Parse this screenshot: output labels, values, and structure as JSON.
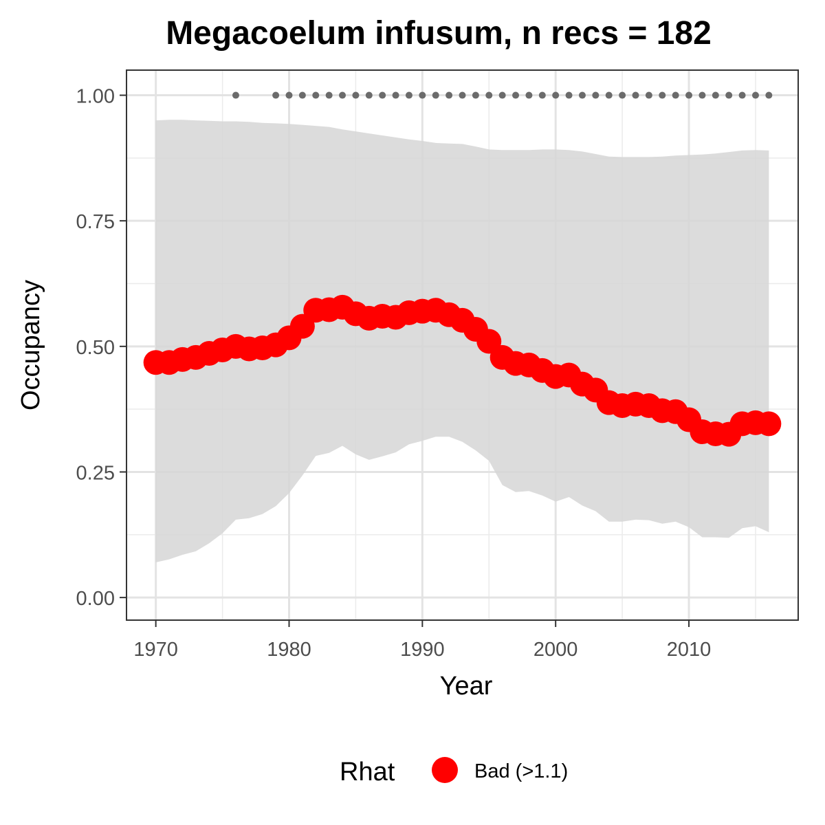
{
  "chart_data": {
    "type": "line",
    "title": "Megacoelum infusum, n recs = 182",
    "xlabel": "Year",
    "ylabel": "Occupancy",
    "xlim": [
      1967.8,
      2018.2
    ],
    "ylim": [
      -0.045,
      1.05
    ],
    "x_ticks": [
      1970,
      1980,
      1990,
      2000,
      2010
    ],
    "x_tick_labels": [
      "1970",
      "1980",
      "1990",
      "2000",
      "2010"
    ],
    "x_minor_ticks": [
      1975,
      1985,
      1995,
      2005,
      2015
    ],
    "y_ticks": [
      0,
      0.25,
      0.5,
      0.75,
      1
    ],
    "y_tick_labels": [
      "0.00",
      "0.25",
      "0.50",
      "0.75",
      "1.00"
    ],
    "y_minor_ticks": [
      0.125,
      0.375,
      0.625,
      0.875
    ],
    "grid": true,
    "series": [
      {
        "name": "Bad (>1.1)",
        "color": "#ff0000",
        "x": [
          1970,
          1971,
          1972,
          1973,
          1974,
          1975,
          1976,
          1977,
          1978,
          1979,
          1980,
          1981,
          1982,
          1983,
          1984,
          1985,
          1986,
          1987,
          1988,
          1989,
          1990,
          1991,
          1992,
          1993,
          1994,
          1995,
          1996,
          1997,
          1998,
          1999,
          2000,
          2001,
          2002,
          2003,
          2004,
          2005,
          2006,
          2007,
          2008,
          2009,
          2010,
          2011,
          2012,
          2013,
          2014,
          2015,
          2016
        ],
        "y": [
          0.468,
          0.468,
          0.474,
          0.478,
          0.486,
          0.493,
          0.5,
          0.495,
          0.497,
          0.503,
          0.517,
          0.54,
          0.572,
          0.573,
          0.578,
          0.565,
          0.556,
          0.56,
          0.558,
          0.567,
          0.57,
          0.572,
          0.563,
          0.552,
          0.534,
          0.51,
          0.478,
          0.466,
          0.463,
          0.452,
          0.44,
          0.443,
          0.425,
          0.413,
          0.388,
          0.382,
          0.385,
          0.382,
          0.372,
          0.37,
          0.354,
          0.33,
          0.326,
          0.325,
          0.346,
          0.348,
          0.346
        ]
      }
    ],
    "ribbon": {
      "color": "#d6d6d6",
      "x": [
        1970,
        1971,
        1972,
        1973,
        1974,
        1975,
        1976,
        1977,
        1978,
        1979,
        1980,
        1981,
        1982,
        1983,
        1984,
        1985,
        1986,
        1987,
        1988,
        1989,
        1990,
        1991,
        1992,
        1993,
        1994,
        1995,
        1996,
        1997,
        1998,
        1999,
        2000,
        2001,
        2002,
        2003,
        2004,
        2005,
        2006,
        2007,
        2008,
        2009,
        2010,
        2011,
        2012,
        2013,
        2014,
        2015,
        2016
      ],
      "upper": [
        0.95,
        0.951,
        0.951,
        0.95,
        0.949,
        0.948,
        0.948,
        0.947,
        0.945,
        0.944,
        0.943,
        0.941,
        0.939,
        0.937,
        0.932,
        0.928,
        0.924,
        0.92,
        0.916,
        0.912,
        0.909,
        0.905,
        0.904,
        0.903,
        0.898,
        0.892,
        0.891,
        0.891,
        0.891,
        0.892,
        0.892,
        0.891,
        0.888,
        0.883,
        0.878,
        0.877,
        0.877,
        0.877,
        0.878,
        0.88,
        0.881,
        0.882,
        0.884,
        0.887,
        0.89,
        0.891,
        0.89
      ],
      "lower": [
        0.07,
        0.076,
        0.085,
        0.092,
        0.108,
        0.128,
        0.155,
        0.158,
        0.166,
        0.182,
        0.208,
        0.243,
        0.282,
        0.288,
        0.302,
        0.285,
        0.274,
        0.281,
        0.289,
        0.305,
        0.312,
        0.32,
        0.32,
        0.31,
        0.293,
        0.272,
        0.224,
        0.21,
        0.212,
        0.203,
        0.191,
        0.2,
        0.183,
        0.172,
        0.151,
        0.151,
        0.155,
        0.154,
        0.147,
        0.151,
        0.14,
        0.12,
        0.12,
        0.119,
        0.138,
        0.142,
        0.13
      ]
    },
    "detections": {
      "color": "#6b6b6b",
      "y": 1.0,
      "x": [
        1976,
        1979,
        1980,
        1981,
        1982,
        1983,
        1984,
        1985,
        1986,
        1987,
        1988,
        1989,
        1990,
        1991,
        1992,
        1993,
        1994,
        1995,
        1996,
        1997,
        1998,
        1999,
        2000,
        2001,
        2002,
        2003,
        2004,
        2005,
        2006,
        2007,
        2008,
        2009,
        2010,
        2011,
        2012,
        2013,
        2014,
        2015,
        2016
      ]
    },
    "legend": {
      "title": "Rhat",
      "position": "bottom",
      "entries": [
        {
          "label": "Bad (>1.1)",
          "color": "#ff0000"
        }
      ]
    }
  }
}
